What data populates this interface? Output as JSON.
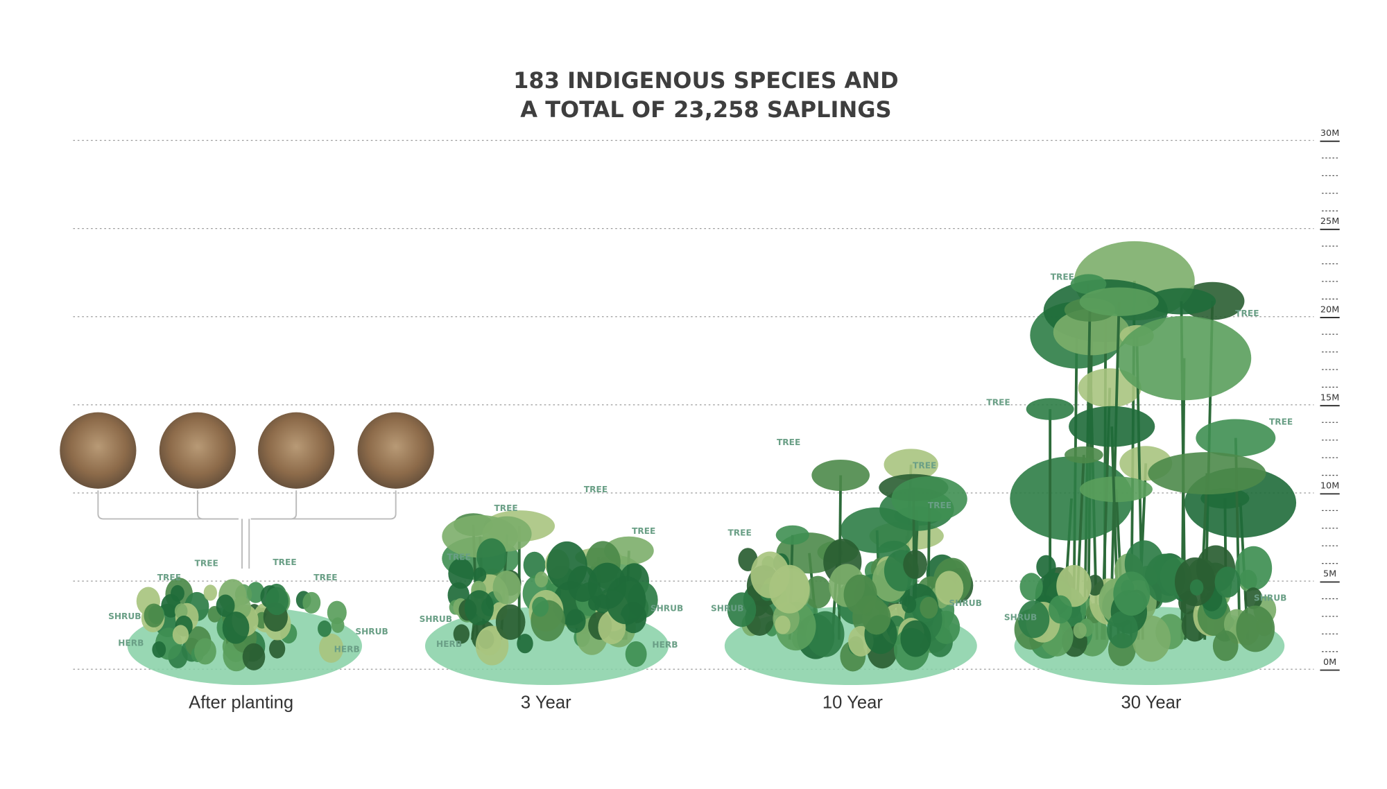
{
  "title": [
    "183 INDIGENOUS SPECIES AND",
    "A TOTAL OF 23,258 SAPLINGS"
  ],
  "scale": [
    "30M",
    "25M",
    "20M",
    "15M",
    "10M",
    "5M",
    "0M"
  ],
  "stages": [
    {
      "label": "After planting",
      "plant_labels": [
        "TREE",
        "TREE",
        "TREE",
        "TREE",
        "SHRUB",
        "HERB",
        "SHRUB",
        "HERB"
      ]
    },
    {
      "label": "3 Year",
      "plant_labels": [
        "TREE",
        "TREE",
        "TREE",
        "TREE",
        "SHRUB",
        "SHRUB",
        "HERB",
        "HERB"
      ]
    },
    {
      "label": "10 Year",
      "plant_labels": [
        "TREE",
        "TREE",
        "TREE",
        "TREE",
        "SHRUB",
        "SHRUB"
      ]
    },
    {
      "label": "30 Year",
      "plant_labels": [
        "TREE",
        "TREE",
        "TREE",
        "TREE",
        "SHRUB",
        "SHRUB"
      ]
    }
  ]
}
